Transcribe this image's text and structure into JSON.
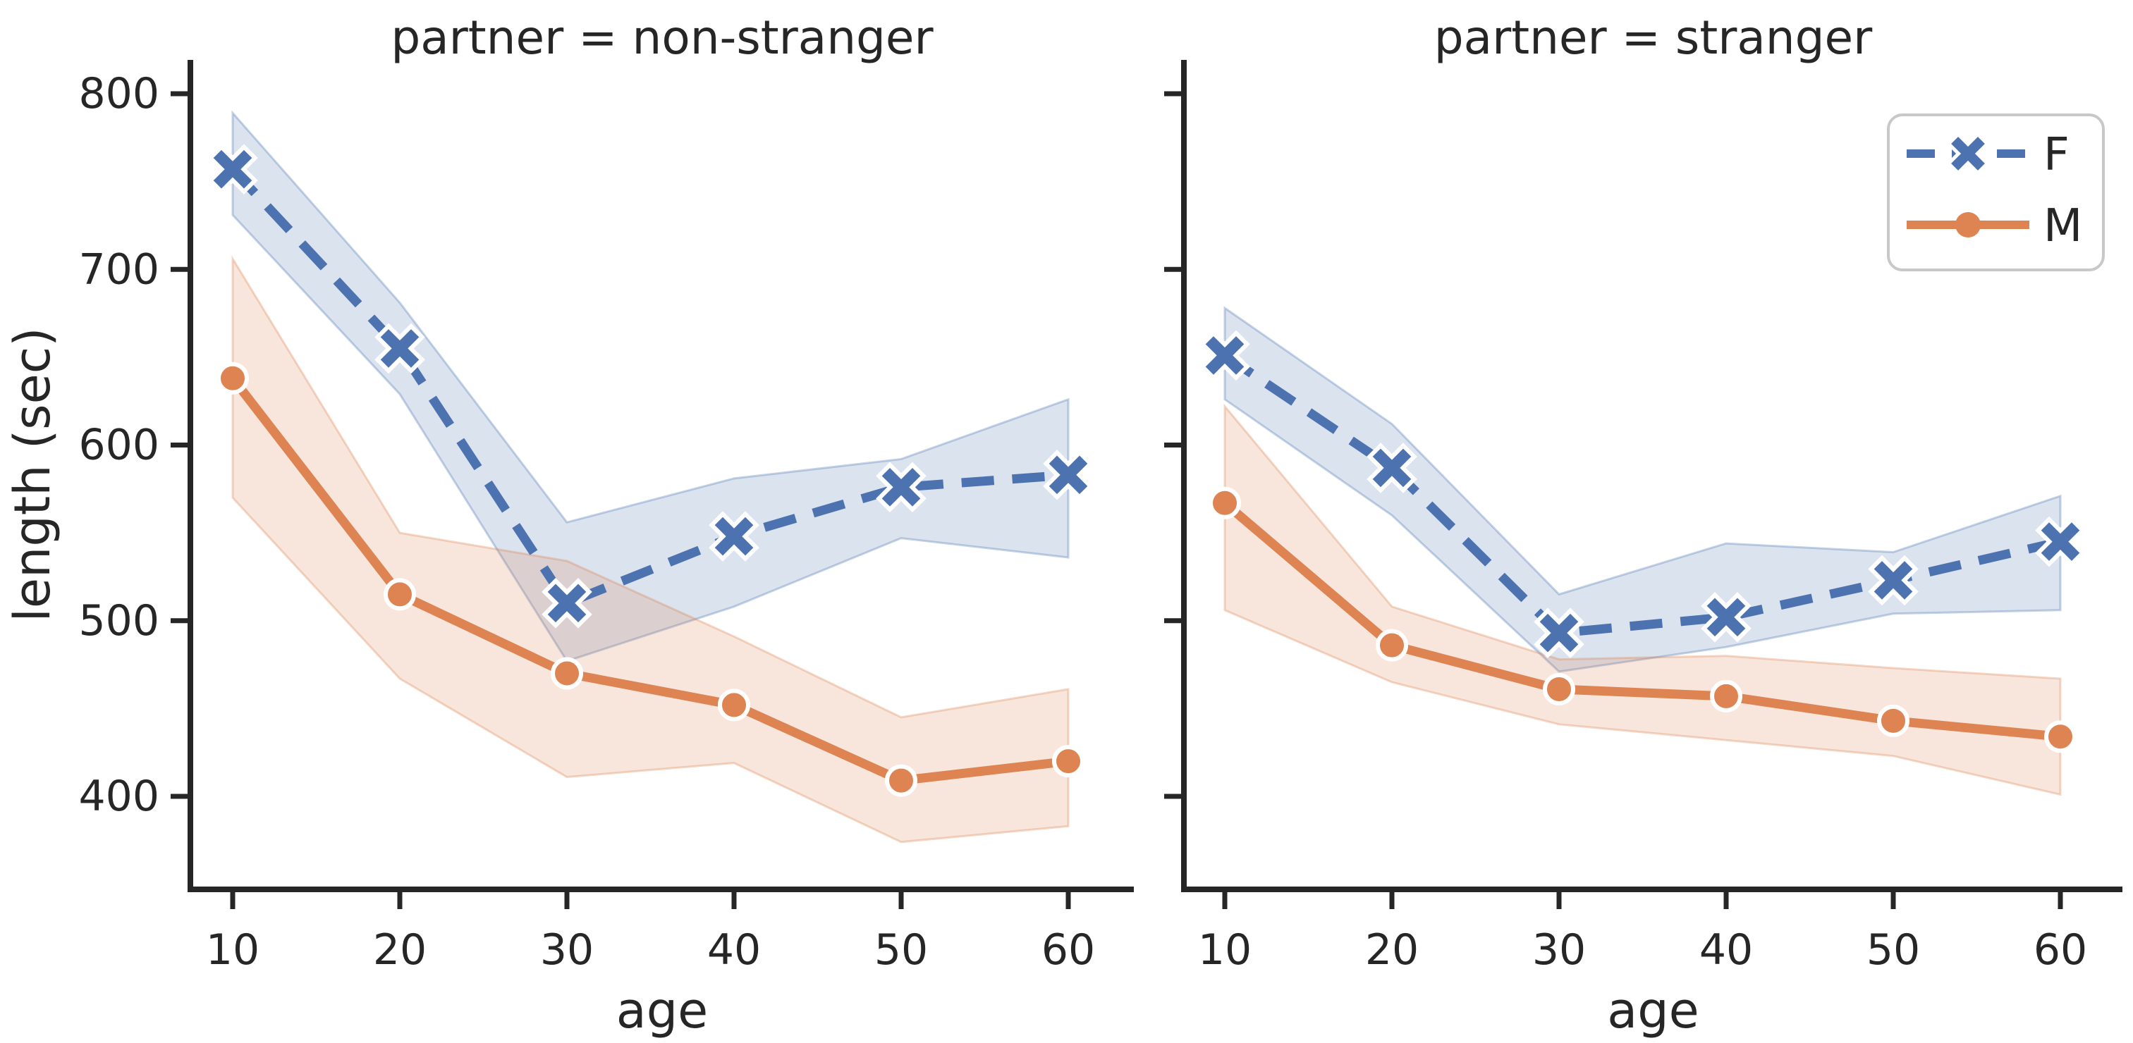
{
  "figure": {
    "ylabel": "length (sec)",
    "xlabel": "age",
    "ytick_labels": [
      "800",
      "700",
      "600",
      "500",
      "400"
    ],
    "ytick_values": [
      800,
      700,
      600,
      500,
      400
    ],
    "xtick_labels": [
      "10",
      "20",
      "30",
      "40",
      "50",
      "60"
    ],
    "xtick_values": [
      10,
      20,
      30,
      40,
      50,
      60
    ],
    "legend": {
      "position": "upper right of right panel",
      "items": [
        {
          "label": "F",
          "line_style": "dashed",
          "marker": "X",
          "color": "#4c72b0"
        },
        {
          "label": "M",
          "line_style": "solid",
          "marker": "circle",
          "color": "#dd8452"
        }
      ]
    },
    "colors": {
      "F": "#4c72b0",
      "M": "#dd8452",
      "band_alpha": 0.2,
      "text": "#262626",
      "spine": "#262626",
      "legend_border": "#c8c8c8",
      "background": "#ffffff"
    }
  },
  "chart_data": [
    {
      "type": "line",
      "title": "partner = non-stranger",
      "xlabel": "age",
      "ylabel": "length (sec)",
      "x": [
        10,
        20,
        30,
        40,
        50,
        60
      ],
      "ylim": [
        348,
        822
      ],
      "grid": false,
      "series": [
        {
          "name": "F",
          "style": "dashed",
          "marker": "X",
          "values": [
            757,
            655,
            510,
            548,
            576,
            583
          ],
          "ci_low": [
            731,
            629,
            477,
            508,
            547,
            536
          ],
          "ci_high": [
            789,
            681,
            556,
            581,
            592,
            626
          ]
        },
        {
          "name": "M",
          "style": "solid",
          "marker": "circle",
          "values": [
            638,
            515,
            470,
            452,
            409,
            420
          ],
          "ci_low": [
            570,
            467,
            411,
            419,
            374,
            383
          ],
          "ci_high": [
            706,
            550,
            534,
            491,
            445,
            461
          ]
        }
      ]
    },
    {
      "type": "line",
      "title": "partner = stranger",
      "xlabel": "age",
      "ylabel": "",
      "x": [
        10,
        20,
        30,
        40,
        50,
        60
      ],
      "ylim": [
        348,
        822
      ],
      "grid": false,
      "series": [
        {
          "name": "F",
          "style": "dashed",
          "marker": "X",
          "values": [
            651,
            587,
            493,
            502,
            523,
            545
          ],
          "ci_low": [
            626,
            560,
            471,
            485,
            504,
            506
          ],
          "ci_high": [
            678,
            612,
            515,
            544,
            539,
            571
          ]
        },
        {
          "name": "M",
          "style": "solid",
          "marker": "circle",
          "values": [
            567,
            486,
            461,
            457,
            443,
            434
          ],
          "ci_low": [
            506,
            465,
            441,
            432,
            423,
            401
          ],
          "ci_high": [
            622,
            508,
            478,
            480,
            473,
            467
          ]
        }
      ]
    }
  ]
}
